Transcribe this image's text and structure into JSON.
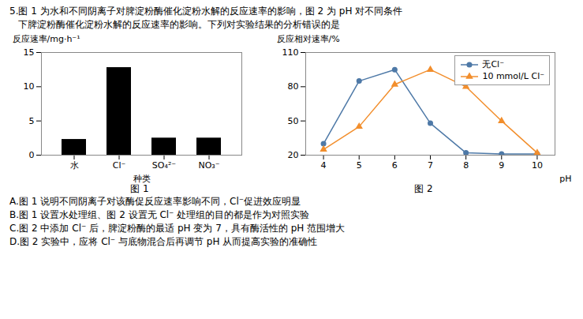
{
  "title": "5.图 1 为水和不同阴离子对脾淀粉酶催化淀粉水解的反应速率的影响，图 2 为 pH 对不同条件",
  "subtitle": "   下脾淀粉酶催化淀粉水解的反应速率的影响。下列对实验结果的分析错误的是",
  "annotations": [
    "A.图 1 说明不同阴离子对该酶促反应速率影响不同，Cl⁻促进效应明显",
    "B.图 1 设置水处理组、图 2 设置无 Cl⁻ 处理组的目的都是作为对照实验",
    "C.图 2 中添加 Cl⁻ 后，脾淀粉酶的最适 pH 变为 7，具有酶活性的 pH 范围增大",
    "D.图 2 实验中，应将 Cl⁻ 与底物混合后再调节 pH 从而提高实验的准确性"
  ],
  "chart_data": [
    {
      "type": "bar",
      "title": "图 1",
      "categories": [
        "水",
        "Cl⁻",
        "SO₄²⁻",
        "NO₃⁻"
      ],
      "values": [
        2.3,
        12.8,
        2.5,
        2.5
      ],
      "xlabel": "种类",
      "ylabel": "反应速率/mg·h⁻¹",
      "ylim": [
        0,
        15
      ],
      "yticks": [
        0,
        5,
        10,
        15
      ]
    },
    {
      "type": "line",
      "title": "图 2",
      "x": [
        4,
        5,
        6,
        7,
        8,
        9,
        10
      ],
      "series": [
        {
          "name": "无Cl⁻",
          "marker": "circle",
          "values": [
            30,
            85,
            95,
            48,
            22,
            21,
            21
          ]
        },
        {
          "name": "10 mmol/L Cl⁻",
          "marker": "triangle",
          "values": [
            25,
            45,
            82,
            95,
            80,
            50,
            22
          ]
        }
      ],
      "xlabel": "pH",
      "ylabel": "反应相对速率/%",
      "xlim": [
        3.5,
        10.5
      ],
      "xticks": [
        4,
        5,
        6,
        7,
        8,
        9,
        10
      ],
      "ylim": [
        20,
        110
      ],
      "yticks": [
        20,
        50,
        80,
        110
      ],
      "legend": "upper right"
    }
  ]
}
